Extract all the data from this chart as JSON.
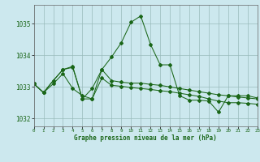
{
  "title": "Graphe pression niveau de la mer (hPa)",
  "bg_color": "#cce8ee",
  "grid_color": "#99bbbb",
  "line_color": "#1a6618",
  "xlim": [
    0,
    23
  ],
  "ylim": [
    1031.75,
    1035.6
  ],
  "yticks": [
    1032,
    1033,
    1034,
    1035
  ],
  "xticks": [
    0,
    1,
    2,
    3,
    4,
    5,
    6,
    7,
    8,
    9,
    10,
    11,
    12,
    13,
    14,
    15,
    16,
    17,
    18,
    19,
    20,
    21,
    22,
    23
  ],
  "series1": [
    1033.1,
    1032.82,
    1033.2,
    1033.55,
    1033.65,
    1032.62,
    1032.62,
    1033.55,
    1033.95,
    1034.4,
    1035.05,
    1035.25,
    1034.35,
    1033.7,
    1033.7,
    1032.72,
    1032.58,
    1032.58,
    1032.55,
    1032.2,
    1032.72,
    1032.72,
    1032.72,
    1032.65
  ],
  "series2": [
    1033.1,
    1032.82,
    1033.2,
    1033.55,
    1033.62,
    1032.62,
    1032.95,
    1033.55,
    1033.2,
    1033.15,
    1033.12,
    1033.12,
    1033.08,
    1033.05,
    1033.0,
    1032.95,
    1032.9,
    1032.85,
    1032.8,
    1032.75,
    1032.72,
    1032.68,
    1032.65,
    1032.62
  ],
  "series3": [
    1033.1,
    1032.82,
    1033.1,
    1033.42,
    1032.95,
    1032.72,
    1032.62,
    1033.28,
    1033.05,
    1033.02,
    1032.98,
    1032.95,
    1032.92,
    1032.88,
    1032.85,
    1032.8,
    1032.75,
    1032.7,
    1032.62,
    1032.55,
    1032.5,
    1032.5,
    1032.48,
    1032.45
  ]
}
